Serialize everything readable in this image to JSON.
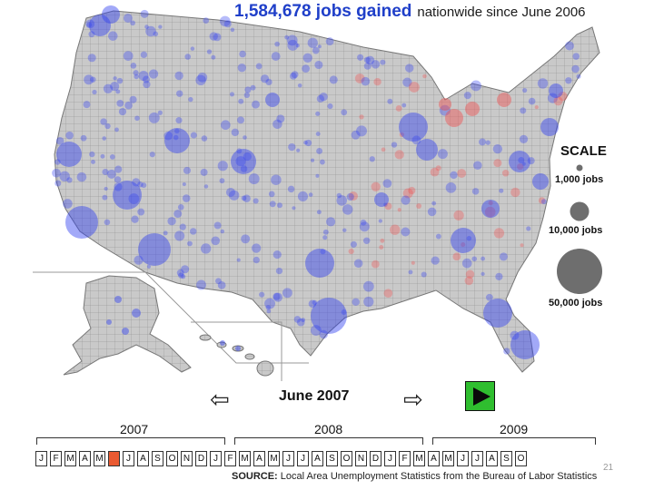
{
  "header": {
    "jobs_count": "1,584,678 jobs gained",
    "suffix": "nationwide since June 2006"
  },
  "scale": {
    "title": "SCALE",
    "items": [
      {
        "label": "1,000 jobs",
        "jobs": 1000
      },
      {
        "label": "10,000 jobs",
        "jobs": 10000
      },
      {
        "label": "50,000 jobs",
        "jobs": 50000
      }
    ]
  },
  "nav": {
    "current_month": "June 2007",
    "prev_icon": "left-arrow-icon",
    "next_icon": "right-arrow-icon",
    "play_icon": "play-icon"
  },
  "timeline": {
    "years": [
      "2007",
      "2008",
      "2009"
    ],
    "months": [
      "J",
      "F",
      "M",
      "A",
      "M",
      "J",
      "J",
      "A",
      "S",
      "O",
      "N",
      "D",
      "J",
      "F",
      "M",
      "A",
      "M",
      "J",
      "J",
      "A",
      "S",
      "O",
      "N",
      "D",
      "J",
      "F",
      "M",
      "A",
      "M",
      "J",
      "J",
      "A",
      "S",
      "O"
    ],
    "active_index": 5
  },
  "source": {
    "prefix": "SOURCE:",
    "text": "Local Area Unemployment Statistics from the Bureau of Labor Statistics"
  },
  "page_number": "21",
  "colors": {
    "gain": "#3040f0",
    "loss": "#f05050",
    "land": "#c9c9c9",
    "play": "#2fbe2f",
    "active_month": "#ea5a32"
  }
}
